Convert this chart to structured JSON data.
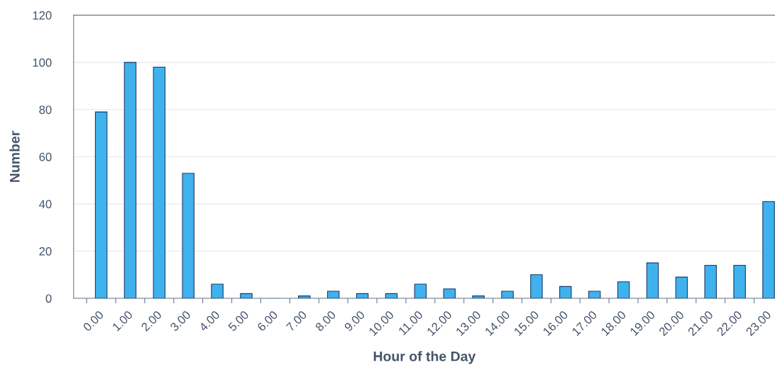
{
  "chart_data": {
    "type": "bar",
    "xlabel": "Hour of the Day",
    "ylabel": "Number",
    "categories": [
      "0.00",
      "1.00",
      "2.00",
      "3.00",
      "4.00",
      "5.00",
      "6.00",
      "7.00",
      "8.00",
      "9.00",
      "10.00",
      "11.00",
      "12.00",
      "13.00",
      "14.00",
      "15.00",
      "16.00",
      "17.00",
      "18.00",
      "19.00",
      "20.00",
      "21.00",
      "22.00",
      "23.00"
    ],
    "values": [
      79,
      100,
      98,
      53,
      6,
      2,
      0,
      1,
      3,
      2,
      2,
      6,
      4,
      1,
      3,
      10,
      5,
      3,
      7,
      15,
      9,
      14,
      14,
      41
    ],
    "color": "#3fb2ee",
    "ylim": [
      0,
      120
    ],
    "yticks": [
      0,
      20,
      40,
      60,
      80,
      100,
      120
    ],
    "grid": "y"
  }
}
